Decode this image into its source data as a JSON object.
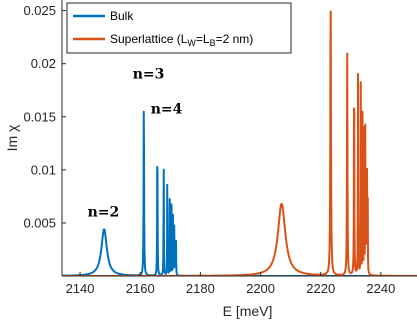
{
  "chart_data": {
    "type": "line",
    "xlabel": "E [meV]",
    "ylabel": "Im χ",
    "xlim": [
      2134,
      2252
    ],
    "ylim": [
      0,
      0.026
    ],
    "xticks": [
      2140,
      2160,
      2180,
      2200,
      2220,
      2240
    ],
    "yticks": [
      0.005,
      0.01,
      0.015,
      0.02,
      0.025
    ],
    "xtick_labels": [
      "2140",
      "2160",
      "2180",
      "2200",
      "2220",
      "2240"
    ],
    "ytick_labels": [
      "0.005",
      "0.01",
      "0.015",
      "0.02",
      "0.025"
    ],
    "legend_position": "top-left",
    "grid": false,
    "series": [
      {
        "name": "Bulk",
        "color": "#0072BD",
        "peaks": [
          {
            "x": 2148,
            "y": 0.0044,
            "width": 1.1
          },
          {
            "x": 2161.2,
            "y": 0.0168,
            "width": 0.09
          },
          {
            "x": 2165.7,
            "y": 0.0135,
            "width": 0.07
          },
          {
            "x": 2167.8,
            "y": 0.0112,
            "width": 0.06
          },
          {
            "x": 2169.0,
            "y": 0.0093,
            "width": 0.05
          },
          {
            "x": 2169.8,
            "y": 0.0078,
            "width": 0.05
          },
          {
            "x": 2170.4,
            "y": 0.0066,
            "width": 0.05
          },
          {
            "x": 2170.9,
            "y": 0.0056,
            "width": 0.05
          },
          {
            "x": 2171.3,
            "y": 0.0047,
            "width": 0.05
          },
          {
            "x": 2171.6,
            "y": 0.0039,
            "width": 0.05
          },
          {
            "x": 2171.9,
            "y": 0.0032,
            "width": 0.05
          }
        ]
      },
      {
        "name": "Superlattice (L_W=L_B=2 nm)",
        "color": "#D95319",
        "peaks": [
          {
            "x": 2207,
            "y": 0.0068,
            "width": 1.5
          },
          {
            "x": 2223.3,
            "y": 0.0265,
            "width": 0.12
          },
          {
            "x": 2228.8,
            "y": 0.0215,
            "width": 0.09
          },
          {
            "x": 2231.1,
            "y": 0.021,
            "width": 0.07
          },
          {
            "x": 2232.4,
            "y": 0.0195,
            "width": 0.06
          },
          {
            "x": 2233.3,
            "y": 0.018,
            "width": 0.05
          },
          {
            "x": 2233.9,
            "y": 0.0165,
            "width": 0.05
          },
          {
            "x": 2234.4,
            "y": 0.015,
            "width": 0.05
          },
          {
            "x": 2234.8,
            "y": 0.0135,
            "width": 0.05
          },
          {
            "x": 2235.1,
            "y": 0.012,
            "width": 0.05
          },
          {
            "x": 2235.4,
            "y": 0.0105,
            "width": 0.05
          },
          {
            "x": 2235.6,
            "y": 0.009,
            "width": 0.05
          }
        ]
      }
    ],
    "legend": [
      {
        "label": "Bulk",
        "sub": []
      },
      {
        "label": "Superlattice (L",
        "sub": [
          {
            "base": "W",
            "after": "=L"
          },
          {
            "base": "B",
            "after": "=2 nm)"
          }
        ]
      }
    ],
    "annotations": [
      {
        "text": "n=2",
        "x": 2142.5,
        "y": 0.0056
      },
      {
        "text": "n=3",
        "x": 2157.5,
        "y": 0.0186
      },
      {
        "text": "n=4",
        "x": 2163.5,
        "y": 0.0153
      }
    ]
  }
}
